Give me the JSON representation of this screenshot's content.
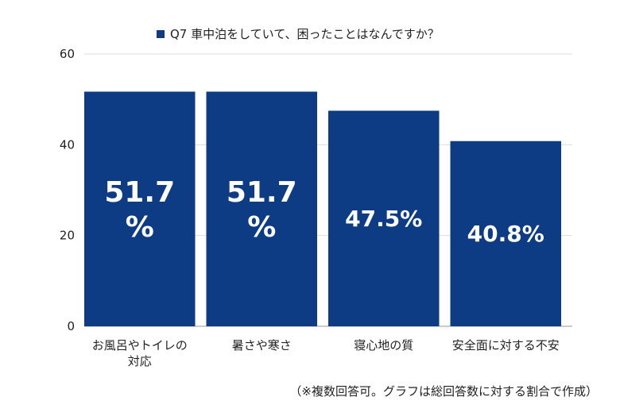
{
  "chart_data": {
    "type": "bar",
    "legend_position": "top",
    "grid": true,
    "ylim": [
      0,
      60
    ],
    "yticks": [
      0,
      20,
      40,
      60
    ],
    "categories": [
      [
        "お風呂やトイレの",
        "対応"
      ],
      [
        "暑さや寒さ"
      ],
      [
        "寝心地の質"
      ],
      [
        "安全面に対する不安"
      ]
    ],
    "series": [
      {
        "name": "Q7 車中泊をしていて、困ったことはなんですか？",
        "color": "#0d3c84",
        "values": [
          51.7,
          51.7,
          47.5,
          40.8
        ],
        "labels": [
          [
            "51.7",
            "%"
          ],
          [
            "51.7",
            "%"
          ],
          [
            "47.5%"
          ],
          [
            "40.8%"
          ]
        ]
      }
    ],
    "note": "（※複数回答可。グラフは総回答数に対する割合で作成）"
  }
}
